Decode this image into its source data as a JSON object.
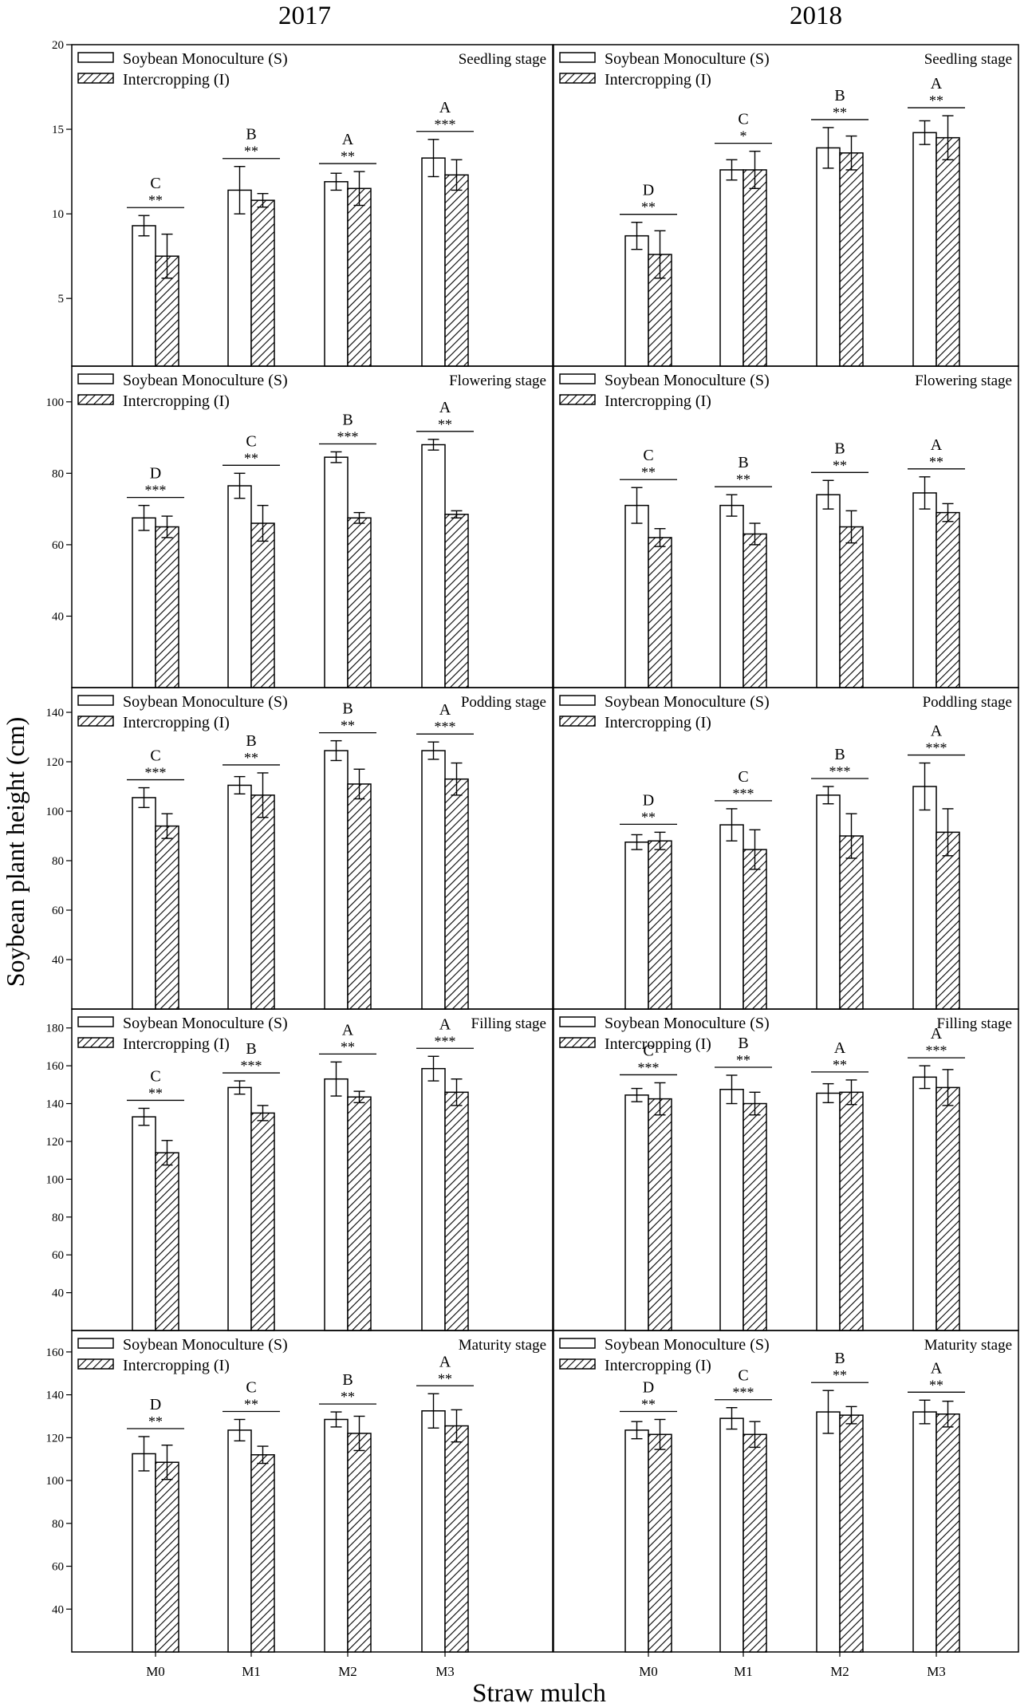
{
  "figure": {
    "ylabel": "Soybean plant height (cm)",
    "xlabel": "Straw mulch",
    "columns": [
      "2017",
      "2018"
    ],
    "legend": [
      "Soybean Monoculture (S)",
      "Intercropping (I)"
    ],
    "categories": [
      "M0",
      "M1",
      "M2",
      "M3"
    ]
  },
  "chart_data": [
    {
      "type": "bar",
      "year": "2017",
      "title": "Seedling stage",
      "categories": [
        "M0",
        "M1",
        "M2",
        "M3"
      ],
      "ylim": [
        1,
        20
      ],
      "yticks": [
        5,
        10,
        15,
        20
      ],
      "series": [
        {
          "name": "Soybean Monoculture (S)",
          "values": [
            9.3,
            11.4,
            11.9,
            13.3
          ],
          "errors": [
            0.6,
            1.4,
            0.5,
            1.1
          ]
        },
        {
          "name": "Intercropping (I)",
          "values": [
            7.5,
            10.8,
            11.5,
            12.3
          ],
          "errors": [
            1.3,
            0.4,
            1.0,
            0.9
          ]
        }
      ],
      "letters": [
        "C",
        "B",
        "A",
        "A"
      ],
      "stars": [
        "**",
        "**",
        "**",
        "***"
      ]
    },
    {
      "type": "bar",
      "year": "2018",
      "title": "Seedling stage",
      "categories": [
        "M0",
        "M1",
        "M2",
        "M3"
      ],
      "ylim": [
        1,
        20
      ],
      "yticks": [],
      "series": [
        {
          "name": "Soybean Monoculture (S)",
          "values": [
            8.7,
            12.6,
            13.9,
            14.8
          ],
          "errors": [
            0.8,
            0.6,
            1.2,
            0.7
          ]
        },
        {
          "name": "Intercropping (I)",
          "values": [
            7.6,
            12.6,
            13.6,
            14.5
          ],
          "errors": [
            1.4,
            1.1,
            1.0,
            1.3
          ]
        }
      ],
      "letters": [
        "D",
        "C",
        "B",
        "A"
      ],
      "stars": [
        "**",
        "*",
        "**",
        "**"
      ]
    },
    {
      "type": "bar",
      "year": "2017",
      "title": "Flowering stage",
      "categories": [
        "M0",
        "M1",
        "M2",
        "M3"
      ],
      "ylim": [
        20,
        110
      ],
      "yticks": [
        40,
        60,
        80,
        100
      ],
      "series": [
        {
          "name": "Soybean Monoculture (S)",
          "values": [
            67.5,
            76.5,
            84.5,
            88
          ],
          "errors": [
            3.5,
            3.5,
            1.5,
            1.5
          ]
        },
        {
          "name": "Intercropping (I)",
          "values": [
            65,
            66,
            67.5,
            68.5
          ],
          "errors": [
            3.0,
            5.0,
            1.5,
            1.0
          ]
        }
      ],
      "letters": [
        "D",
        "C",
        "B",
        "A"
      ],
      "stars": [
        "***",
        "**",
        "***",
        "**"
      ]
    },
    {
      "type": "bar",
      "year": "2018",
      "title": "Flowering stage",
      "categories": [
        "M0",
        "M1",
        "M2",
        "M3"
      ],
      "ylim": [
        20,
        110
      ],
      "yticks": [],
      "series": [
        {
          "name": "Soybean Monoculture (S)",
          "values": [
            71,
            71,
            74,
            74.5
          ],
          "errors": [
            5.0,
            3.0,
            4.0,
            4.5
          ]
        },
        {
          "name": "Intercropping (I)",
          "values": [
            62,
            63,
            65,
            69
          ],
          "errors": [
            2.5,
            3.0,
            4.5,
            2.5
          ]
        }
      ],
      "letters": [
        "C",
        "B",
        "B",
        "A"
      ],
      "stars": [
        "**",
        "**",
        "**",
        "**"
      ]
    },
    {
      "type": "bar",
      "year": "2017",
      "title": "Podding stage",
      "categories": [
        "M0",
        "M1",
        "M2",
        "M3"
      ],
      "ylim": [
        20,
        150
      ],
      "yticks": [
        40,
        60,
        80,
        100,
        120,
        140
      ],
      "series": [
        {
          "name": "Soybean Monoculture (S)",
          "values": [
            105.5,
            110.5,
            124.5,
            124.5
          ],
          "errors": [
            4.0,
            3.5,
            4.0,
            3.5
          ]
        },
        {
          "name": "Intercropping (I)",
          "values": [
            94,
            106.5,
            111,
            113
          ],
          "errors": [
            5.0,
            9.0,
            6.0,
            6.5
          ]
        }
      ],
      "letters": [
        "C",
        "B",
        "B",
        "A"
      ],
      "stars": [
        "***",
        "**",
        "**",
        "***"
      ]
    },
    {
      "type": "bar",
      "year": "2018",
      "title": "Poddling stage",
      "categories": [
        "M0",
        "M1",
        "M2",
        "M3"
      ],
      "ylim": [
        20,
        150
      ],
      "yticks": [],
      "series": [
        {
          "name": "Soybean Monoculture (S)",
          "values": [
            87.5,
            94.5,
            106.5,
            110
          ],
          "errors": [
            3.0,
            6.5,
            3.5,
            9.5
          ]
        },
        {
          "name": "Intercropping (I)",
          "values": [
            88,
            84.5,
            90,
            91.5
          ],
          "errors": [
            3.5,
            8.0,
            9.0,
            9.5
          ]
        }
      ],
      "letters": [
        "D",
        "C",
        "B",
        "A"
      ],
      "stars": [
        "**",
        "***",
        "***",
        "***"
      ]
    },
    {
      "type": "bar",
      "year": "2017",
      "title": "Filling stage",
      "categories": [
        "M0",
        "M1",
        "M2",
        "M3"
      ],
      "ylim": [
        20,
        190
      ],
      "yticks": [
        40,
        60,
        80,
        100,
        120,
        140,
        160,
        180
      ],
      "series": [
        {
          "name": "Soybean Monoculture (S)",
          "values": [
            133,
            148.5,
            153,
            158.5
          ],
          "errors": [
            4.5,
            3.5,
            9.0,
            6.5
          ]
        },
        {
          "name": "Intercropping (I)",
          "values": [
            114,
            135,
            143.5,
            146
          ],
          "errors": [
            6.5,
            4.0,
            3.0,
            7.0
          ]
        }
      ],
      "letters": [
        "C",
        "B",
        "A",
        "A"
      ],
      "stars": [
        "**",
        "***",
        "**",
        "***"
      ]
    },
    {
      "type": "bar",
      "year": "2018",
      "title": "Filling stage",
      "categories": [
        "M0",
        "M1",
        "M2",
        "M3"
      ],
      "ylim": [
        20,
        190
      ],
      "yticks": [],
      "series": [
        {
          "name": "Soybean Monoculture (S)",
          "values": [
            144.5,
            147.5,
            145.5,
            154
          ],
          "errors": [
            3.5,
            7.5,
            5.0,
            6.0
          ]
        },
        {
          "name": "Intercropping (I)",
          "values": [
            142.5,
            140,
            146,
            148.5
          ],
          "errors": [
            8.5,
            6.0,
            6.5,
            9.5
          ]
        }
      ],
      "letters": [
        "C",
        "B",
        "A",
        "A"
      ],
      "stars": [
        "***",
        "**",
        "**",
        "***"
      ]
    },
    {
      "type": "bar",
      "year": "2017",
      "title": "Maturity stage",
      "categories": [
        "M0",
        "M1",
        "M2",
        "M3"
      ],
      "ylim": [
        20,
        170
      ],
      "yticks": [
        40,
        60,
        80,
        100,
        120,
        140,
        160
      ],
      "series": [
        {
          "name": "Soybean Monoculture (S)",
          "values": [
            112.5,
            123.5,
            128.5,
            132.5
          ],
          "errors": [
            8.0,
            5.0,
            3.5,
            8.0
          ]
        },
        {
          "name": "Intercropping (I)",
          "values": [
            108.5,
            112,
            122,
            125.5
          ],
          "errors": [
            8.0,
            4.0,
            8.0,
            7.5
          ]
        }
      ],
      "letters": [
        "D",
        "C",
        "B",
        "A"
      ],
      "stars": [
        "**",
        "**",
        "**",
        "**"
      ]
    },
    {
      "type": "bar",
      "year": "2018",
      "title": "Maturity stage",
      "categories": [
        "M0",
        "M1",
        "M2",
        "M3"
      ],
      "ylim": [
        20,
        170
      ],
      "yticks": [],
      "series": [
        {
          "name": "Soybean Monoculture (S)",
          "values": [
            123.5,
            129,
            132,
            132
          ],
          "errors": [
            4.0,
            5.0,
            10.0,
            5.5
          ]
        },
        {
          "name": "Intercropping (I)",
          "values": [
            121.5,
            121.5,
            130.5,
            131
          ],
          "errors": [
            7.0,
            6.0,
            4.0,
            6.0
          ]
        }
      ],
      "letters": [
        "D",
        "C",
        "B",
        "A"
      ],
      "stars": [
        "**",
        "***",
        "**",
        "**"
      ]
    }
  ]
}
